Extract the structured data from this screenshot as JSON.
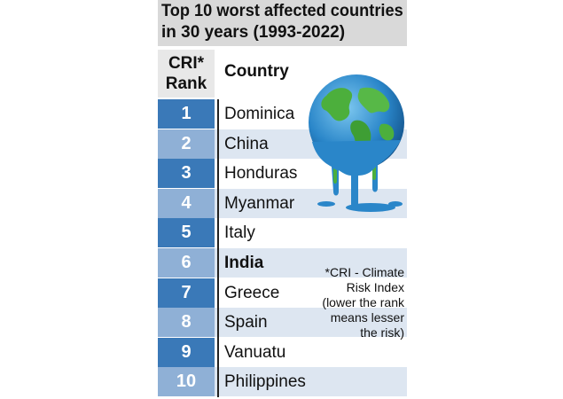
{
  "header": {
    "title_line1": "Top 10 worst affected countries",
    "title_line2": "in 30 years (1993-2022)",
    "rank_line1": "CRI*",
    "rank_line2": "Rank",
    "country": "Country"
  },
  "chart_data": {
    "type": "table",
    "title": "Top 10 worst affected countries in 30 years (1993-2022)",
    "columns": [
      "CRI* Rank",
      "Country"
    ],
    "rows": [
      {
        "rank": "1",
        "country": "Dominica"
      },
      {
        "rank": "2",
        "country": "China"
      },
      {
        "rank": "3",
        "country": "Honduras"
      },
      {
        "rank": "4",
        "country": "Myanmar"
      },
      {
        "rank": "5",
        "country": "Italy"
      },
      {
        "rank": "6",
        "country": "India"
      },
      {
        "rank": "7",
        "country": "Greece"
      },
      {
        "rank": "8",
        "country": "Spain"
      },
      {
        "rank": "9",
        "country": "Vanuatu"
      },
      {
        "rank": "10",
        "country": "Philippines"
      }
    ],
    "highlighted_country": "India"
  },
  "note": {
    "line1": "*CRI - Climate",
    "line2": "Risk Index",
    "line3": "(lower the rank",
    "line4": "means lesser",
    "line5": "the risk)"
  },
  "colors": {
    "rank_dark": "#3a79b8",
    "rank_light": "#8fb0d6",
    "row_shade": "#dde6f1",
    "title_bg": "#d9d9d9"
  },
  "illustration": "melting-globe-icon"
}
